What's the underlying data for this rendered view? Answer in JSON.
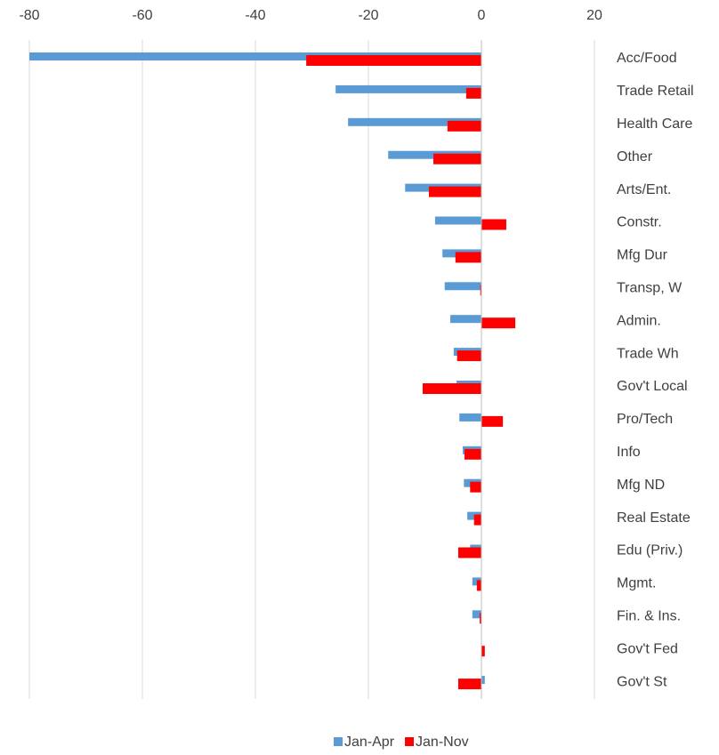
{
  "chart_data": {
    "type": "bar",
    "orientation": "horizontal",
    "categories": [
      "Acc/Food",
      "Trade Retail",
      "Health Care",
      "Other",
      "Arts/Ent.",
      "Constr.",
      "Mfg Dur",
      "Transp, W",
      "Admin.",
      "Trade Wh",
      "Gov't Local",
      "Pro/Tech",
      "Info",
      "Mfg ND",
      "Real Estate",
      "Edu (Priv.)",
      "Mgmt.",
      "Fin. & Ins.",
      "Gov't Fed",
      "Gov't St"
    ],
    "series": [
      {
        "name": "Jan-Apr",
        "color": "#5b9bd5",
        "values": [
          -80,
          -25.8,
          -23.6,
          -16.5,
          -13.5,
          -8.2,
          -6.9,
          -6.5,
          -5.5,
          -4.9,
          -4.4,
          -3.9,
          -3.3,
          -3.1,
          -2.5,
          -2.0,
          -1.6,
          -1.6,
          0,
          0.6
        ]
      },
      {
        "name": "Jan-Nov",
        "color": "#ff0000",
        "values": [
          -31,
          -2.7,
          -6,
          -8.5,
          -9.3,
          4.4,
          -4.6,
          -0.2,
          6.0,
          -4.3,
          -10.4,
          3.8,
          -3.0,
          -2.0,
          -1.3,
          -4.1,
          -0.8,
          -0.3,
          0.6,
          -4.1
        ]
      }
    ],
    "xlim": [
      -80,
      20
    ],
    "xticks": [
      -80,
      -60,
      -40,
      -20,
      0,
      20
    ],
    "grid": true,
    "legend": "bottom"
  }
}
